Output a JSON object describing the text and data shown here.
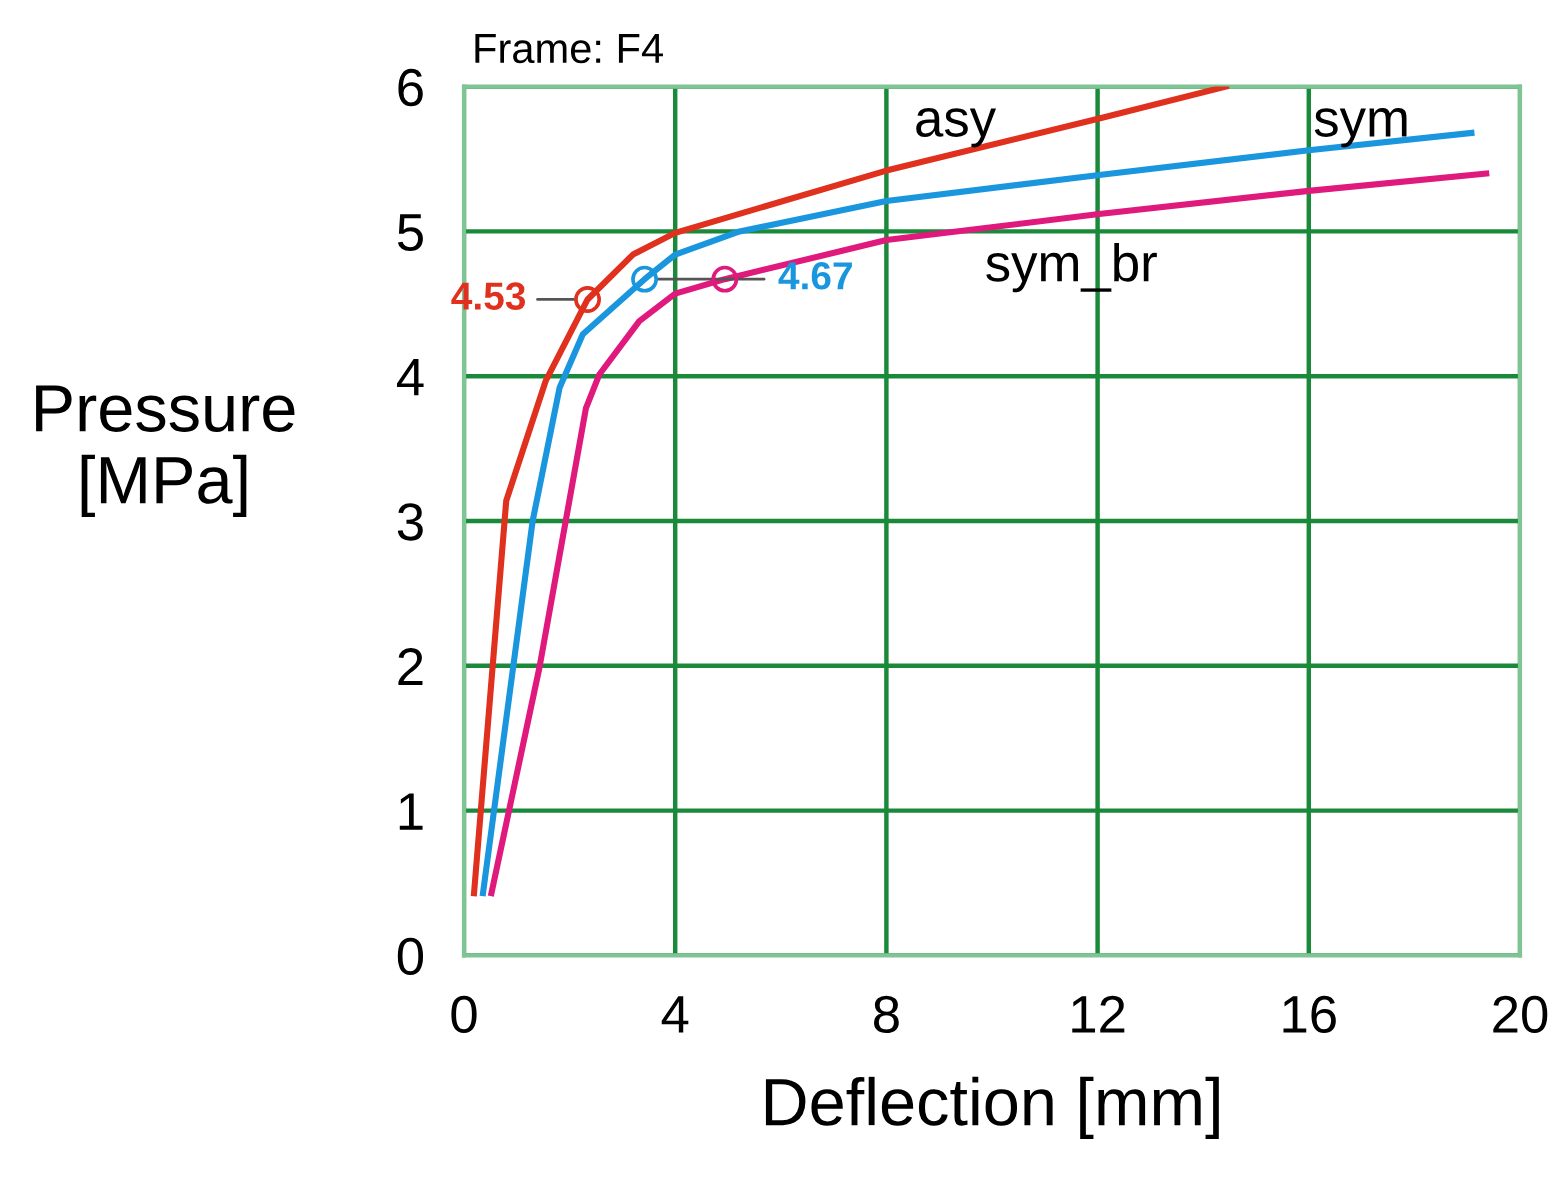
{
  "chart_data": {
    "type": "line",
    "title": "Frame: F4",
    "xlabel": "Deflection [mm]",
    "ylabel": "Pressure\n[MPa]",
    "xlim": [
      0,
      20
    ],
    "xticks": [
      0,
      4,
      8,
      12,
      16,
      20
    ],
    "ylim": [
      0,
      6
    ],
    "yticks": [
      0,
      1,
      2,
      3,
      4,
      5,
      6
    ],
    "grid": true,
    "series": [
      {
        "name": "asy",
        "color": "#e0301e",
        "x": [
          0.19,
          0.8,
          1.55,
          2.34,
          3.2,
          4.0,
          8.0,
          12.03,
          14.43
        ],
        "values": [
          0.43,
          3.14,
          3.97,
          4.53,
          4.84,
          4.99,
          5.42,
          5.78,
          6.0
        ]
      },
      {
        "name": "sym",
        "color": "#1a96de",
        "x": [
          0.36,
          1.3,
          1.81,
          2.25,
          3.42,
          4.0,
          5.22,
          8.0,
          12.03,
          16.0,
          19.08
        ],
        "values": [
          0.43,
          3.0,
          3.92,
          4.29,
          4.67,
          4.84,
          5.0,
          5.21,
          5.39,
          5.56,
          5.68
        ]
      },
      {
        "name": "sym_br",
        "color": "#e0197d",
        "x": [
          0.52,
          1.43,
          2.31,
          2.56,
          3.32,
          4.0,
          4.94,
          8.0,
          12.03,
          16.0,
          19.36
        ],
        "values": [
          0.43,
          1.99,
          3.78,
          4.01,
          4.38,
          4.57,
          4.67,
          4.94,
          5.12,
          5.28,
          5.4
        ]
      },
      {
        "type": "scatter",
        "marker": "circle",
        "x": [
          2.34,
          3.42,
          4.94
        ],
        "values": [
          4.53,
          4.67,
          4.67
        ],
        "colors": [
          "#e0301e",
          "#1a96de",
          "#e0197d"
        ]
      }
    ],
    "annotations": [
      {
        "text": "4.53",
        "x": 2.34,
        "y": 4.53
      },
      {
        "text": "4.67",
        "x": 3.42,
        "y": 4.67
      }
    ]
  }
}
